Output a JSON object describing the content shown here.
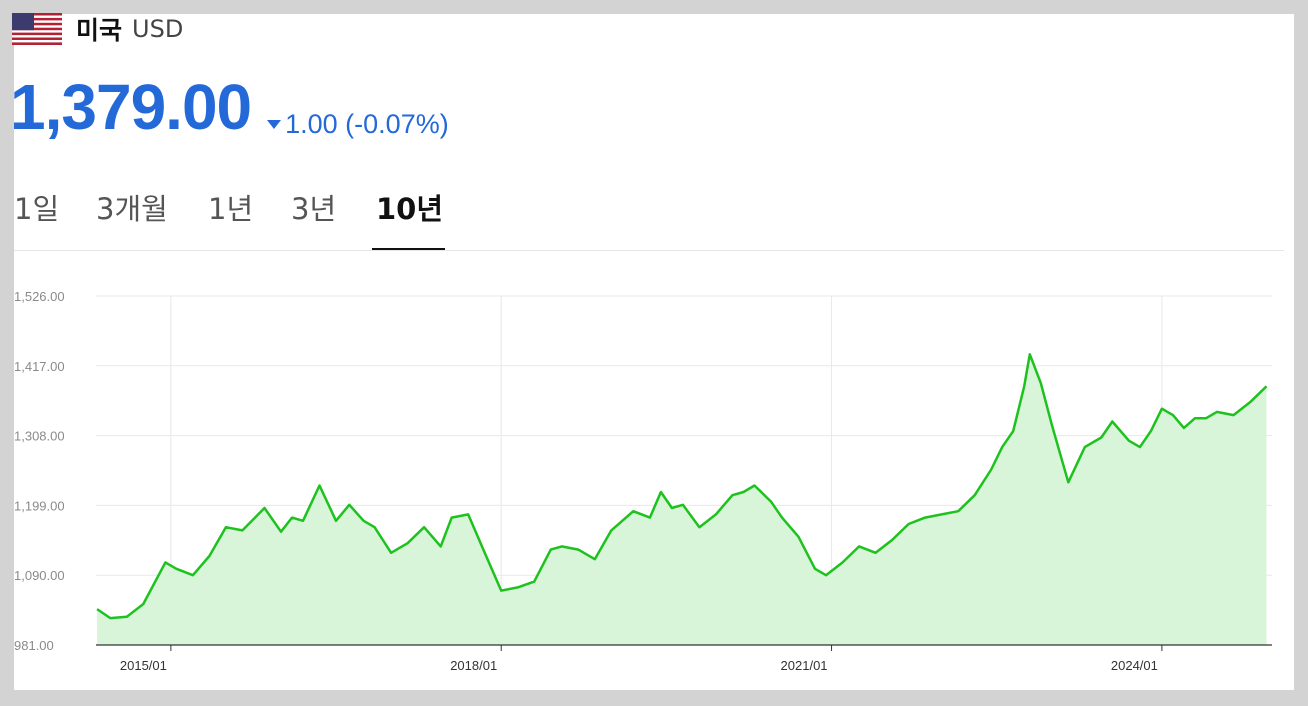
{
  "header": {
    "country": "미국",
    "currency": "USD",
    "flag_icon": "us-flag-icon"
  },
  "quote": {
    "price": "1,379.00",
    "change": "1.00 (-0.07%)",
    "direction": "down",
    "color": "#2469d8"
  },
  "tabs": [
    {
      "label": "1일",
      "active": false
    },
    {
      "label": "3개월",
      "active": false
    },
    {
      "label": "1년",
      "active": false
    },
    {
      "label": "3년",
      "active": false
    },
    {
      "label": "10년",
      "active": true
    }
  ],
  "chart_data": {
    "type": "area",
    "ylim": [
      981,
      1526
    ],
    "yticks": [
      "1,526.00",
      "1,417.00",
      "1,308.00",
      "1,199.00",
      "1,090.00",
      "981.00"
    ],
    "ytick_values": [
      1526,
      1417,
      1308,
      1199,
      1090,
      981
    ],
    "xticks": [
      "2015/01",
      "2018/01",
      "2021/01",
      "2024/01"
    ],
    "xtick_values": [
      2015.0,
      2018.0,
      2021.0,
      2024.0
    ],
    "xlim": [
      2014.32,
      2025.0
    ],
    "line_color": "#1ec21e",
    "fill_color": "#d9f5d9",
    "series": [
      {
        "x": [
          2014.33,
          2014.45,
          2014.6,
          2014.75,
          2014.95,
          2015.05,
          2015.2,
          2015.35,
          2015.5,
          2015.65,
          2015.85,
          2016.0,
          2016.1,
          2016.2,
          2016.35,
          2016.5,
          2016.62,
          2016.75,
          2016.85,
          2017.0,
          2017.15,
          2017.3,
          2017.45,
          2017.55,
          2017.7,
          2017.85,
          2018.0,
          2018.15,
          2018.3,
          2018.45,
          2018.55,
          2018.7,
          2018.85,
          2019.0,
          2019.2,
          2019.35,
          2019.45,
          2019.55,
          2019.65,
          2019.8,
          2019.95,
          2020.1,
          2020.2,
          2020.3,
          2020.45,
          2020.55,
          2020.7,
          2020.85,
          2020.95,
          2021.1,
          2021.25,
          2021.4,
          2021.55,
          2021.7,
          2021.85,
          2022.0,
          2022.15,
          2022.3,
          2022.45,
          2022.55,
          2022.65,
          2022.75,
          2022.8,
          2022.9,
          2023.0,
          2023.15,
          2023.3,
          2023.45,
          2023.55,
          2023.7,
          2023.8,
          2023.9,
          2024.0,
          2024.1,
          2024.2,
          2024.3,
          2024.4,
          2024.5,
          2024.65,
          2024.8,
          2024.95
        ],
        "y": [
          1037,
          1023,
          1025,
          1045,
          1110,
          1100,
          1090,
          1120,
          1165,
          1160,
          1195,
          1158,
          1180,
          1175,
          1230,
          1175,
          1200,
          1175,
          1165,
          1125,
          1140,
          1165,
          1135,
          1180,
          1185,
          1125,
          1066,
          1071,
          1080,
          1130,
          1135,
          1130,
          1115,
          1160,
          1190,
          1180,
          1220,
          1195,
          1200,
          1165,
          1185,
          1215,
          1220,
          1230,
          1205,
          1180,
          1150,
          1100,
          1090,
          1110,
          1135,
          1125,
          1145,
          1170,
          1180,
          1185,
          1190,
          1215,
          1255,
          1290,
          1315,
          1385,
          1435,
          1390,
          1325,
          1235,
          1290,
          1305,
          1330,
          1300,
          1290,
          1315,
          1350,
          1340,
          1320,
          1335,
          1335,
          1345,
          1340,
          1360,
          1385
        ]
      }
    ]
  }
}
